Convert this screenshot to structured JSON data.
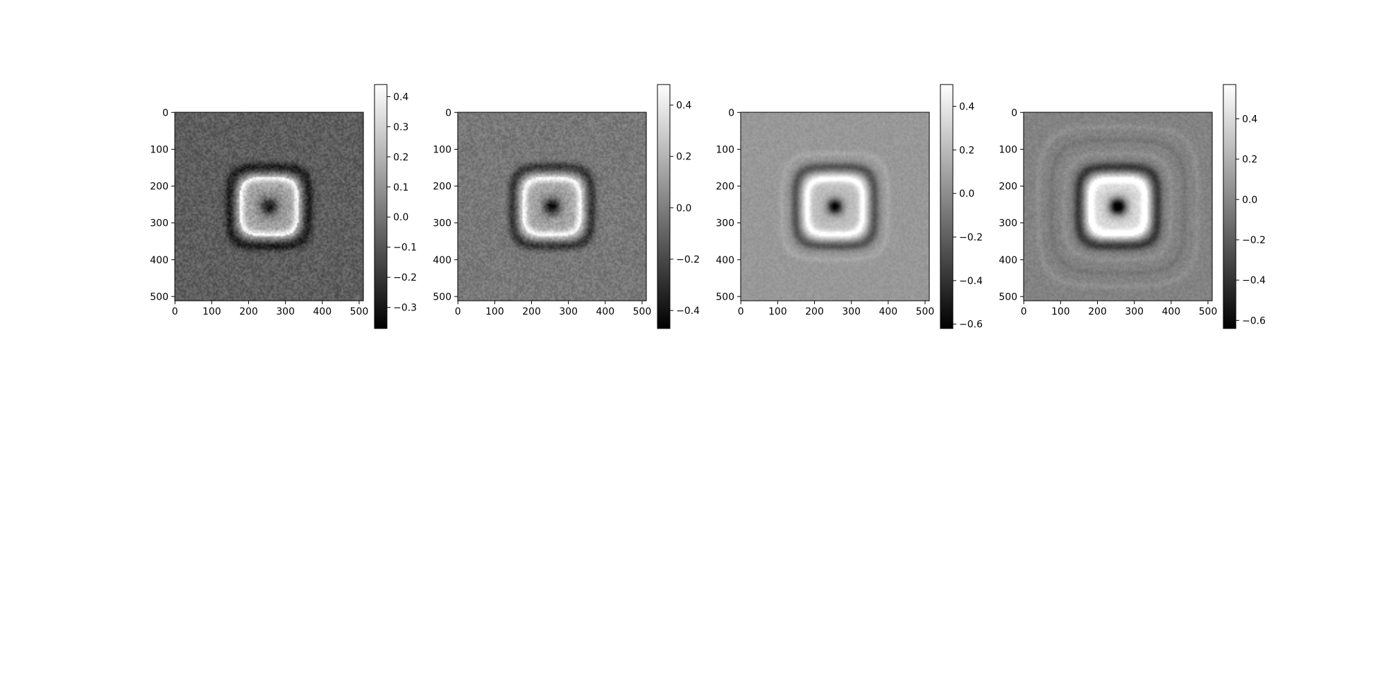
{
  "chart_data": [
    {
      "type": "heatmap",
      "colormap": "gray",
      "image_size": [
        512,
        512
      ],
      "x_ticks": [
        0,
        100,
        200,
        300,
        400,
        500
      ],
      "y_ticks": [
        0,
        100,
        200,
        300,
        400,
        500
      ],
      "colorbar": {
        "range": [
          -0.37,
          0.44
        ],
        "ticks": [
          -0.3,
          -0.2,
          -0.1,
          0.0,
          0.1,
          0.2,
          0.3,
          0.4
        ],
        "tick_labels": [
          "−0.3",
          "−0.2",
          "−0.1",
          "0.0",
          "0.1",
          "0.2",
          "0.3",
          "0.4"
        ]
      },
      "pattern": {
        "background": -0.07,
        "ring": 0.2,
        "inner": 0.15,
        "center_dot": -0.18,
        "halo": -0.2,
        "dot_radius": 22,
        "square_half_width": 90,
        "halo_rings": 0,
        "noise": 0.07
      }
    },
    {
      "type": "heatmap",
      "colormap": "gray",
      "image_size": [
        512,
        512
      ],
      "x_ticks": [
        0,
        100,
        200,
        300,
        400,
        500
      ],
      "y_ticks": [
        0,
        100,
        200,
        300,
        400,
        500
      ],
      "colorbar": {
        "range": [
          -0.47,
          0.48
        ],
        "ticks": [
          -0.4,
          -0.2,
          0.0,
          0.2,
          0.4
        ],
        "tick_labels": [
          "−0.4",
          "−0.2",
          "0.0",
          "0.2",
          "0.4"
        ]
      },
      "pattern": {
        "background": -0.02,
        "ring": 0.3,
        "inner": 0.15,
        "center_dot": -0.35,
        "halo": -0.25,
        "dot_radius": 22,
        "square_half_width": 90,
        "halo_rings": 0,
        "noise": 0.07
      }
    },
    {
      "type": "heatmap",
      "colormap": "gray",
      "image_size": [
        512,
        512
      ],
      "x_ticks": [
        0,
        100,
        200,
        300,
        400,
        500
      ],
      "y_ticks": [
        0,
        100,
        200,
        300,
        400,
        500
      ],
      "colorbar": {
        "range": [
          -0.62,
          0.5
        ],
        "ticks": [
          -0.6,
          -0.4,
          -0.2,
          0.0,
          0.2,
          0.4
        ],
        "tick_labels": [
          "−0.6",
          "−0.4",
          "−0.2",
          "0.0",
          "0.2",
          "0.4"
        ]
      },
      "pattern": {
        "background": 0.05,
        "ring": 0.42,
        "inner": 0.22,
        "center_dot": -0.55,
        "halo": -0.3,
        "dot_radius": 20,
        "square_half_width": 90,
        "halo_rings": 1,
        "noise": 0.04
      }
    },
    {
      "type": "heatmap",
      "colormap": "gray",
      "image_size": [
        512,
        512
      ],
      "x_ticks": [
        0,
        100,
        200,
        300,
        400,
        500
      ],
      "y_ticks": [
        0,
        100,
        200,
        300,
        400,
        500
      ],
      "colorbar": {
        "range": [
          -0.64,
          0.57
        ],
        "ticks": [
          -0.6,
          -0.4,
          -0.2,
          0.0,
          0.2,
          0.4
        ],
        "tick_labels": [
          "−0.6",
          "−0.4",
          "−0.2",
          "0.0",
          "0.2",
          "0.4"
        ]
      },
      "pattern": {
        "background": -0.02,
        "ring": 0.45,
        "inner": 0.4,
        "center_dot": -0.55,
        "halo": -0.35,
        "dot_radius": 22,
        "square_half_width": 90,
        "halo_rings": 3,
        "noise": 0.05
      }
    }
  ]
}
